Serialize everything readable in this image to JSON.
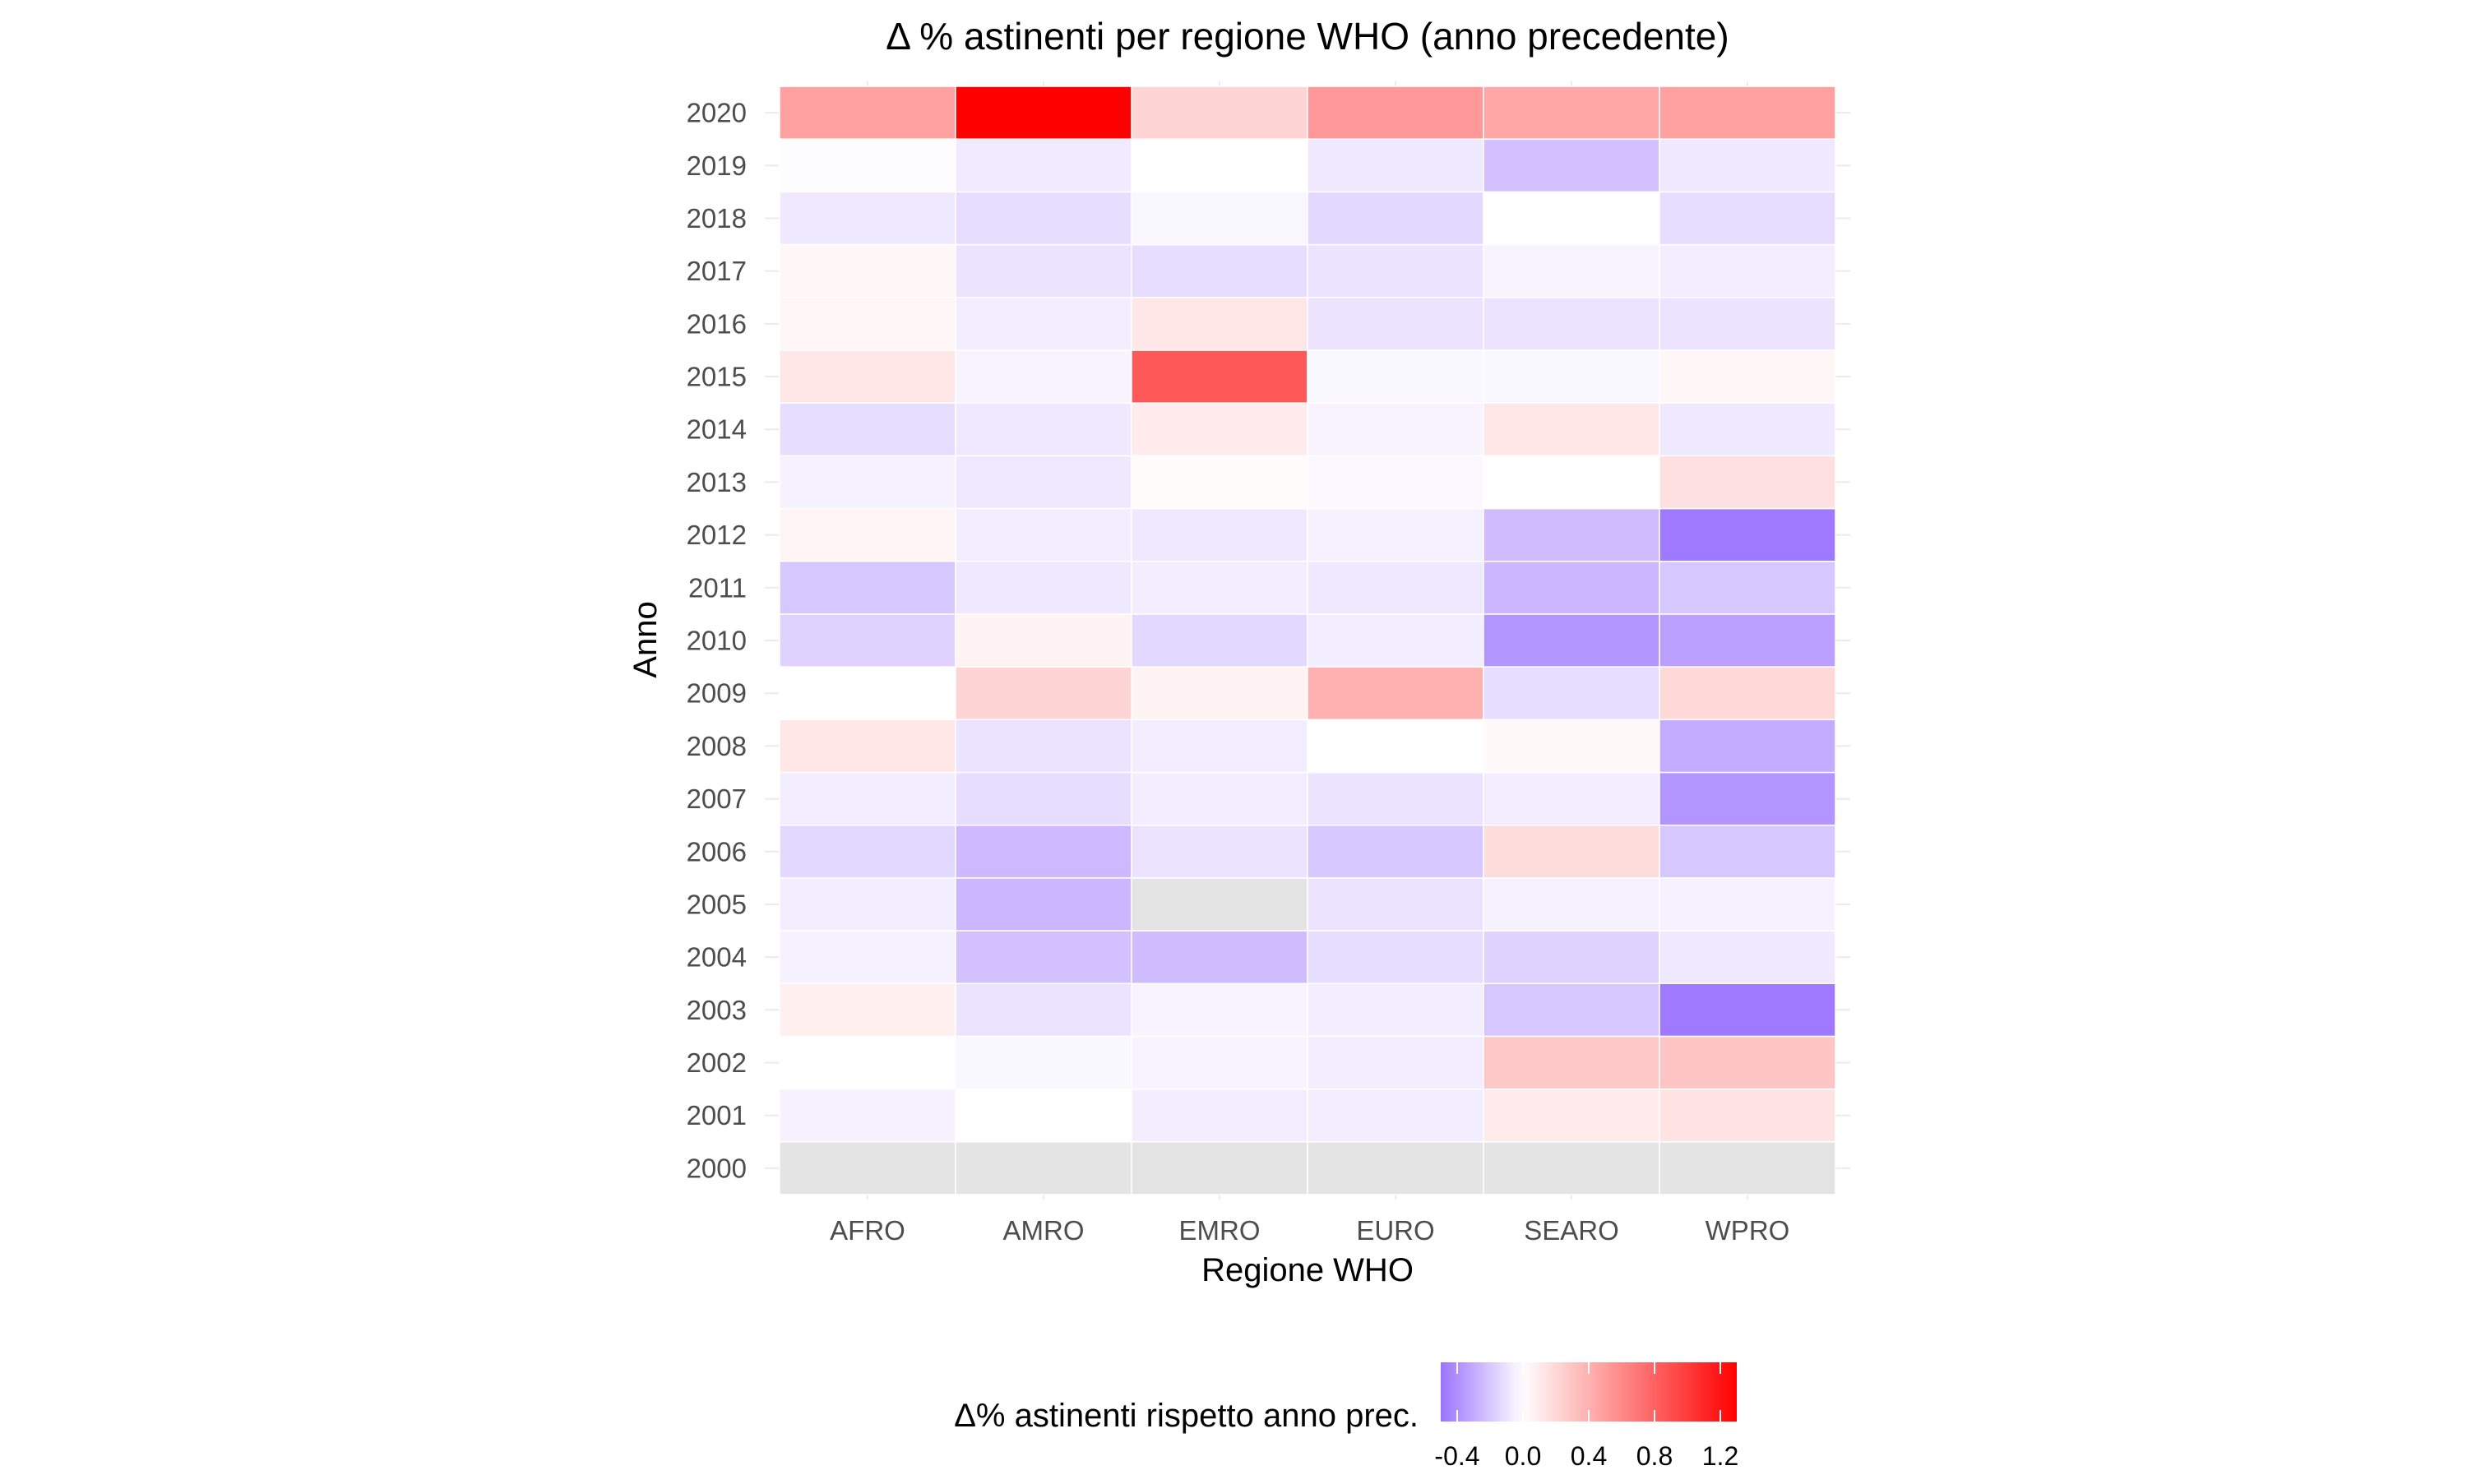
{
  "chart_data": {
    "type": "heatmap",
    "title": "Δ % astinenti per regione WHO (anno precedente)",
    "xlabel": "Regione WHO",
    "ylabel": "Anno",
    "x_categories": [
      "AFRO",
      "AMRO",
      "EMRO",
      "EURO",
      "SEARO",
      "WPRO"
    ],
    "y_categories": [
      "2000",
      "2001",
      "2002",
      "2003",
      "2004",
      "2005",
      "2006",
      "2007",
      "2008",
      "2009",
      "2010",
      "2011",
      "2012",
      "2013",
      "2014",
      "2015",
      "2016",
      "2017",
      "2018",
      "2019",
      "2020"
    ],
    "values": [
      [
        null,
        null,
        null,
        null,
        null,
        null
      ],
      [
        -0.05,
        0.0,
        -0.06,
        -0.06,
        0.1,
        0.15
      ],
      [
        0.0,
        -0.03,
        -0.04,
        -0.06,
        0.28,
        0.3
      ],
      [
        0.08,
        -0.1,
        -0.04,
        -0.06,
        -0.2,
        -0.48
      ],
      [
        -0.05,
        -0.22,
        -0.24,
        -0.12,
        -0.16,
        -0.08
      ],
      [
        -0.06,
        -0.26,
        null,
        -0.1,
        -0.05,
        -0.05
      ],
      [
        -0.14,
        -0.25,
        -0.1,
        -0.2,
        0.18,
        -0.2
      ],
      [
        -0.06,
        -0.12,
        -0.06,
        -0.1,
        -0.06,
        -0.38
      ],
      [
        0.12,
        -0.1,
        -0.06,
        0.0,
        0.03,
        -0.3
      ],
      [
        0.0,
        0.22,
        0.06,
        0.4,
        -0.12,
        0.2
      ],
      [
        -0.16,
        0.06,
        -0.14,
        -0.06,
        -0.38,
        -0.34
      ],
      [
        -0.2,
        -0.08,
        -0.06,
        -0.08,
        -0.26,
        -0.2
      ],
      [
        0.05,
        -0.06,
        -0.08,
        -0.05,
        -0.24,
        -0.48
      ],
      [
        -0.05,
        -0.08,
        0.02,
        -0.02,
        0.0,
        0.16
      ],
      [
        -0.12,
        -0.08,
        0.1,
        -0.04,
        0.12,
        -0.08
      ],
      [
        0.12,
        -0.04,
        0.85,
        -0.03,
        -0.03,
        0.04
      ],
      [
        0.04,
        -0.06,
        0.12,
        -0.1,
        -0.1,
        -0.1
      ],
      [
        0.04,
        -0.1,
        -0.12,
        -0.1,
        -0.04,
        -0.06
      ],
      [
        -0.08,
        -0.12,
        -0.03,
        -0.14,
        0.0,
        -0.12
      ],
      [
        -0.01,
        -0.07,
        0.0,
        -0.08,
        -0.22,
        -0.08
      ],
      [
        0.48,
        1.3,
        0.22,
        0.52,
        0.45,
        0.48
      ]
    ],
    "na_color": "#e4e4e4",
    "color_scale": {
      "low": "#9b73ff",
      "mid": "#ffffff",
      "high": "#ff0000",
      "midpoint": 0.0,
      "min": -0.5,
      "max": 1.3
    },
    "legend": {
      "title": "Δ% astinenti rispetto anno prec.",
      "position": "bottom",
      "breaks": [
        -0.4,
        0.0,
        0.4,
        0.8,
        1.2
      ],
      "break_labels": [
        "-0.4",
        "0.0",
        "0.4",
        "0.8",
        "1.2"
      ]
    },
    "grid": true
  }
}
